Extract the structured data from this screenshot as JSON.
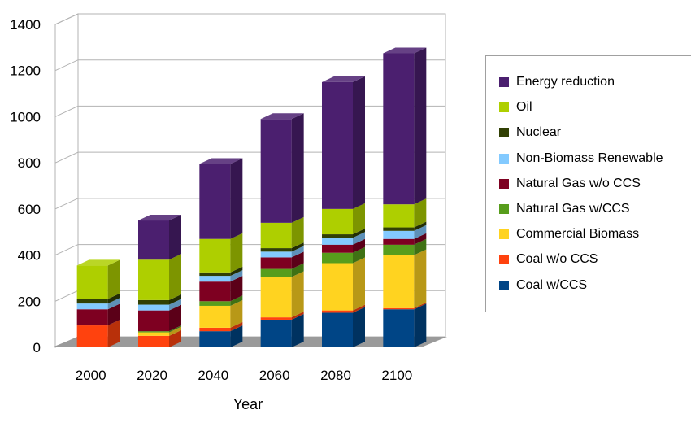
{
  "chart_data": {
    "type": "bar",
    "stacked": true,
    "three_d": true,
    "title": "",
    "xlabel": "Year",
    "ylabel": "",
    "ylim": [
      0,
      1400
    ],
    "yticks": [
      0,
      200,
      400,
      600,
      800,
      1000,
      1200,
      1400
    ],
    "grid": true,
    "legend_position": "right",
    "categories": [
      "2000",
      "2020",
      "2040",
      "2060",
      "2080",
      "2100"
    ],
    "series": [
      {
        "name": "Coal w/CCS",
        "color": "#004586",
        "values": [
          0,
          0,
          70,
          120,
          150,
          165
        ]
      },
      {
        "name": "Coal w/o CCS",
        "color": "#ff420e",
        "values": [
          95,
          50,
          15,
          10,
          10,
          5
        ]
      },
      {
        "name": "Commercial Biomass",
        "color": "#ffd320",
        "values": [
          0,
          15,
          95,
          175,
          205,
          230
        ]
      },
      {
        "name": "Natural Gas w/CCS",
        "color": "#579d1c",
        "values": [
          0,
          5,
          20,
          35,
          45,
          45
        ]
      },
      {
        "name": "Natural Gas w/o CCS",
        "color": "#7e0021",
        "values": [
          70,
          90,
          85,
          50,
          35,
          25
        ]
      },
      {
        "name": "Non-Biomass Renewable",
        "color": "#83caff",
        "values": [
          25,
          25,
          25,
          25,
          30,
          35
        ]
      },
      {
        "name": "Nuclear",
        "color": "#314004",
        "values": [
          20,
          20,
          15,
          15,
          15,
          15
        ]
      },
      {
        "name": "Oil",
        "color": "#aecf00",
        "values": [
          145,
          175,
          145,
          110,
          110,
          100
        ]
      },
      {
        "name": "Energy reduction",
        "color": "#4b1f6f",
        "values": [
          0,
          170,
          325,
          450,
          550,
          655
        ]
      }
    ],
    "legend_order": [
      "Energy reduction",
      "Oil",
      "Nuclear",
      "Non-Biomass Renewable",
      "Natural Gas w/o CCS",
      "Natural Gas w/CCS",
      "Commercial Biomass",
      "Coal w/o CCS",
      "Coal w/CCS"
    ]
  }
}
